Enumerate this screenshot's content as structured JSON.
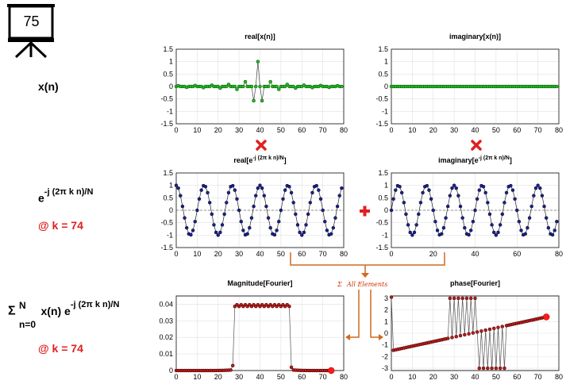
{
  "slide_number": "75",
  "labels": {
    "xn": "x(n)",
    "kernel_base": "e",
    "kernel_exp": "-j (2π k n)/N",
    "k_value_1": "@ k = 74",
    "sum_sigma": "Σ",
    "sum_upper": "N",
    "sum_lower": "n=0",
    "sum_body": "x(n) e",
    "sum_exp": "-j (2π k n)/N",
    "k_value_2": "@ k = 74",
    "all_elements": "All Elements"
  },
  "colors": {
    "green_marker": "#22bb22",
    "navy_marker": "#1a237e",
    "red_marker": "#b71c1c",
    "arrow_orange": "#d2691e",
    "multiply_red": "#e02020"
  },
  "chart_data": [
    {
      "id": "real-x",
      "type": "line",
      "title": "real[x(n)]",
      "title_sup": "",
      "x_ticks": [
        0,
        10,
        20,
        30,
        40,
        50,
        60,
        70,
        80
      ],
      "y_ticks": [
        "1.5",
        "1",
        "0.5",
        "0",
        "-0.5",
        "-1",
        "-1.5"
      ],
      "xlim": [
        0,
        80
      ],
      "ylim": [
        -1.5,
        1.5
      ],
      "series": [
        {
          "signal": "sinc",
          "color": "green",
          "x": [
            0,
            79
          ],
          "center": 39,
          "peak": 1.0,
          "width": 4
        }
      ]
    },
    {
      "id": "imag-x",
      "type": "line",
      "title": "imaginary[x(n)]",
      "title_sup": "",
      "x_ticks": [
        0,
        10,
        20,
        30,
        40,
        50,
        60,
        70,
        80
      ],
      "y_ticks": [
        "1.5",
        "1",
        "0.5",
        "0",
        "-0.5",
        "-1",
        "-1.5"
      ],
      "xlim": [
        0,
        80
      ],
      "ylim": [
        -1.5,
        1.5
      ],
      "series": [
        {
          "signal": "zero",
          "color": "green",
          "x": [
            0,
            79
          ]
        }
      ]
    },
    {
      "id": "real-kernel",
      "type": "line",
      "title": "real[e",
      "title_sup": "-j (2π k n)/N",
      "title_end": "]",
      "x_ticks": [
        0,
        10,
        20,
        30,
        40,
        50,
        60,
        70,
        80
      ],
      "y_ticks": [
        "1.5",
        "1",
        "0.5",
        "0",
        "-0.5",
        "-1",
        "-1.5"
      ],
      "xlim": [
        0,
        80
      ],
      "ylim": [
        -1.5,
        1.5
      ],
      "series": [
        {
          "signal": "cos",
          "color": "navy",
          "x": [
            0,
            79
          ],
          "k": 74,
          "N": 80
        }
      ]
    },
    {
      "id": "imag-kernel",
      "type": "line",
      "title": "imaginary[e",
      "title_sup": "-j (2π k n)/N",
      "title_end": "]",
      "x_ticks": [
        0,
        20,
        40,
        60,
        80
      ],
      "y_ticks": [
        "1.5",
        "1",
        "0.5",
        "0",
        "-0.5",
        "-1",
        "-1.5"
      ],
      "xlim": [
        0,
        80
      ],
      "ylim": [
        -1.5,
        1.5
      ],
      "series": [
        {
          "signal": "sin",
          "color": "navy",
          "x": [
            0,
            79
          ],
          "k": 74,
          "N": 80
        }
      ]
    },
    {
      "id": "magnitude",
      "type": "line",
      "title": "Magnitude[Fourier]",
      "title_sup": "",
      "x_ticks": [
        0,
        10,
        20,
        30,
        40,
        50,
        60,
        70,
        80
      ],
      "y_ticks": [
        "0.04",
        "0.03",
        "0.02",
        "0.01",
        "0"
      ],
      "xlim": [
        0,
        80
      ],
      "ylim": [
        0,
        0.045
      ],
      "series": [
        {
          "signal": "rect",
          "color": "red",
          "x": [
            0,
            74
          ],
          "low": 0.0,
          "high": 0.039,
          "start": 28,
          "end": 54,
          "current_k": 74
        }
      ]
    },
    {
      "id": "phase",
      "type": "line",
      "title": "phase[Fourier]",
      "title_sup": "",
      "x_ticks": [
        0,
        10,
        20,
        30,
        40,
        50,
        60,
        70,
        80
      ],
      "y_ticks": [
        "3",
        "2",
        "1",
        "0",
        "-1",
        "-2",
        "-3"
      ],
      "xlim": [
        0,
        80
      ],
      "ylim": [
        -3.2,
        3.2
      ],
      "series": [
        {
          "signal": "phase",
          "color": "red",
          "x": [
            0,
            74
          ],
          "start": -1.5,
          "end": 1.4,
          "alt_start": 28,
          "alt_end": 54,
          "alt_high": 3.0,
          "alt_low": -3.0,
          "current_k": 74
        }
      ]
    }
  ]
}
